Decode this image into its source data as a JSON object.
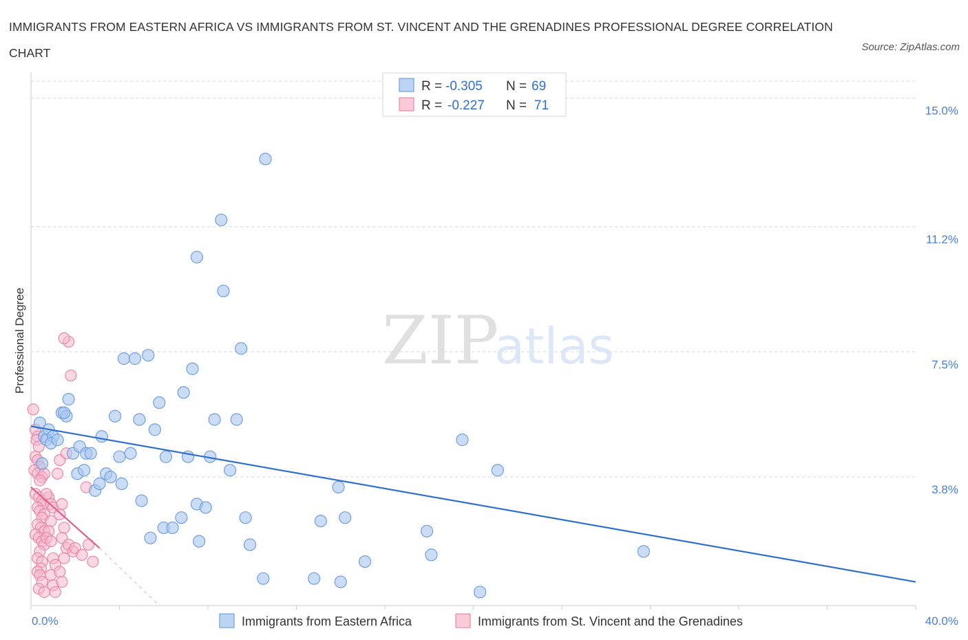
{
  "title": "IMMIGRANTS FROM EASTERN AFRICA VS IMMIGRANTS FROM ST. VINCENT AND THE GRENADINES PROFESSIONAL DEGREE CORRELATION CHART",
  "source": "Source: ZipAtlas.com",
  "watermark": {
    "zip": "ZIP",
    "atlas": "atlas"
  },
  "colors": {
    "blue_fill": "#a9c6f0",
    "blue_stroke": "#6f9fe0",
    "blue_line": "#2f6fd0",
    "pink_fill": "#f5b8cc",
    "pink_stroke": "#e888a8",
    "pink_line": "#e0608a",
    "grid": "#d8d8d8",
    "axis_text": "#4a7fd4"
  },
  "legend": {
    "rows": [
      {
        "r_label": "R = ",
        "r_value": "-0.305",
        "n_label": "N = ",
        "n_value": "69"
      },
      {
        "r_label": "R = ",
        "r_value": "-0.227",
        "n_label": "N = ",
        "n_value": "71"
      }
    ]
  },
  "chart_data": {
    "type": "scatter",
    "title": "IMMIGRANTS FROM EASTERN AFRICA VS IMMIGRANTS FROM ST. VINCENT AND THE GRENADINES PROFESSIONAL DEGREE CORRELATION CHART",
    "xlabel": "",
    "ylabel": "Professional Degree",
    "xlim": [
      0,
      40
    ],
    "ylim": [
      0,
      15.5
    ],
    "x_tick_labels": [
      "0.0%",
      "40.0%"
    ],
    "y_ticks": [
      3.8,
      7.5,
      11.2,
      15.0
    ],
    "y_tick_labels": [
      "3.8%",
      "7.5%",
      "11.2%",
      "15.0%"
    ],
    "grid": "horizontal dashed",
    "legend_placement": "top-center",
    "series": [
      {
        "name": "Immigrants from Eastern Africa",
        "trend": {
          "x": [
            0,
            40
          ],
          "y": [
            5.3,
            0.7
          ]
        },
        "points": [
          [
            0.4,
            5.4
          ],
          [
            0.6,
            5.0
          ],
          [
            0.8,
            5.2
          ],
          [
            0.7,
            4.9
          ],
          [
            1.0,
            5.0
          ],
          [
            0.9,
            4.8
          ],
          [
            1.4,
            5.7
          ],
          [
            1.6,
            5.6
          ],
          [
            1.5,
            5.7
          ],
          [
            1.7,
            6.1
          ],
          [
            1.9,
            4.5
          ],
          [
            2.2,
            4.7
          ],
          [
            2.5,
            4.5
          ],
          [
            2.7,
            4.5
          ],
          [
            2.1,
            3.9
          ],
          [
            2.4,
            4.0
          ],
          [
            2.9,
            3.4
          ],
          [
            3.1,
            3.6
          ],
          [
            3.2,
            5.0
          ],
          [
            3.4,
            3.9
          ],
          [
            3.6,
            3.8
          ],
          [
            3.8,
            5.6
          ],
          [
            4.0,
            4.4
          ],
          [
            4.1,
            3.6
          ],
          [
            4.2,
            7.3
          ],
          [
            4.5,
            4.5
          ],
          [
            4.7,
            7.3
          ],
          [
            4.9,
            5.5
          ],
          [
            5.0,
            3.1
          ],
          [
            5.3,
            7.4
          ],
          [
            5.6,
            5.2
          ],
          [
            5.8,
            6.0
          ],
          [
            6.0,
            2.3
          ],
          [
            6.1,
            4.4
          ],
          [
            5.4,
            2.0
          ],
          [
            6.4,
            2.3
          ],
          [
            6.8,
            2.6
          ],
          [
            6.9,
            6.3
          ],
          [
            7.1,
            4.4
          ],
          [
            7.3,
            7.0
          ],
          [
            7.5,
            3.0
          ],
          [
            7.6,
            1.9
          ],
          [
            7.9,
            2.9
          ],
          [
            7.5,
            10.3
          ],
          [
            8.1,
            4.4
          ],
          [
            8.3,
            5.5
          ],
          [
            8.6,
            11.4
          ],
          [
            8.7,
            9.3
          ],
          [
            9.0,
            4.0
          ],
          [
            9.3,
            5.5
          ],
          [
            9.5,
            7.6
          ],
          [
            9.7,
            2.6
          ],
          [
            9.9,
            1.8
          ],
          [
            10.5,
            0.8
          ],
          [
            10.6,
            13.2
          ],
          [
            12.8,
            0.8
          ],
          [
            13.1,
            2.5
          ],
          [
            13.9,
            3.5
          ],
          [
            14.0,
            0.7
          ],
          [
            14.2,
            2.6
          ],
          [
            15.1,
            1.3
          ],
          [
            17.9,
            2.2
          ],
          [
            18.1,
            1.5
          ],
          [
            19.5,
            4.9
          ],
          [
            20.3,
            0.4
          ],
          [
            21.1,
            4.0
          ],
          [
            27.7,
            1.6
          ],
          [
            0.5,
            4.2
          ],
          [
            1.2,
            4.9
          ]
        ]
      },
      {
        "name": "Immigrants from St. Vincent and the Grenadines",
        "trend": {
          "x": [
            0,
            3.1
          ],
          "y": [
            3.5,
            1.7
          ]
        },
        "trend_extension": {
          "x": [
            3.1,
            5.8
          ],
          "y": [
            1.7,
            0.0
          ]
        },
        "points": [
          [
            0.1,
            5.8
          ],
          [
            0.2,
            5.2
          ],
          [
            0.3,
            5.0
          ],
          [
            0.25,
            4.9
          ],
          [
            0.35,
            4.7
          ],
          [
            0.2,
            4.4
          ],
          [
            0.3,
            4.3
          ],
          [
            0.4,
            4.1
          ],
          [
            0.15,
            4.0
          ],
          [
            0.3,
            3.9
          ],
          [
            0.5,
            3.8
          ],
          [
            0.6,
            3.9
          ],
          [
            0.4,
            3.7
          ],
          [
            0.2,
            3.3
          ],
          [
            0.35,
            3.2
          ],
          [
            0.5,
            3.1
          ],
          [
            0.55,
            3.0
          ],
          [
            0.3,
            2.9
          ],
          [
            0.4,
            2.8
          ],
          [
            0.6,
            2.7
          ],
          [
            0.5,
            2.6
          ],
          [
            0.3,
            2.4
          ],
          [
            0.45,
            2.3
          ],
          [
            0.6,
            2.2
          ],
          [
            0.2,
            2.1
          ],
          [
            0.35,
            2.0
          ],
          [
            0.5,
            1.9
          ],
          [
            0.6,
            1.8
          ],
          [
            0.4,
            1.6
          ],
          [
            0.3,
            1.4
          ],
          [
            0.5,
            1.3
          ],
          [
            0.45,
            1.1
          ],
          [
            0.3,
            1.0
          ],
          [
            0.4,
            0.9
          ],
          [
            0.5,
            0.7
          ],
          [
            0.35,
            0.5
          ],
          [
            0.6,
            0.4
          ],
          [
            0.8,
            3.2
          ],
          [
            0.9,
            3.0
          ],
          [
            1.0,
            2.9
          ],
          [
            0.9,
            2.5
          ],
          [
            0.8,
            2.2
          ],
          [
            0.7,
            2.0
          ],
          [
            0.9,
            1.9
          ],
          [
            1.0,
            1.4
          ],
          [
            1.1,
            1.2
          ],
          [
            0.9,
            0.9
          ],
          [
            1.0,
            0.6
          ],
          [
            1.1,
            0.4
          ],
          [
            1.3,
            4.3
          ],
          [
            1.2,
            3.9
          ],
          [
            1.4,
            3.0
          ],
          [
            1.3,
            2.7
          ],
          [
            1.5,
            2.3
          ],
          [
            1.4,
            2.0
          ],
          [
            1.6,
            1.7
          ],
          [
            1.5,
            1.4
          ],
          [
            1.3,
            1.0
          ],
          [
            1.4,
            0.7
          ],
          [
            1.7,
            7.8
          ],
          [
            1.5,
            7.9
          ],
          [
            1.8,
            6.8
          ],
          [
            1.6,
            4.5
          ],
          [
            1.7,
            1.8
          ],
          [
            1.9,
            1.6
          ],
          [
            2.0,
            1.7
          ],
          [
            2.3,
            1.5
          ],
          [
            2.5,
            3.5
          ],
          [
            2.6,
            1.8
          ],
          [
            2.8,
            1.3
          ],
          [
            0.7,
            3.3
          ]
        ]
      }
    ]
  },
  "bottom_legend": [
    {
      "label": "Immigrants from Eastern Africa"
    },
    {
      "label": "Immigrants from St. Vincent and the Grenadines"
    }
  ]
}
